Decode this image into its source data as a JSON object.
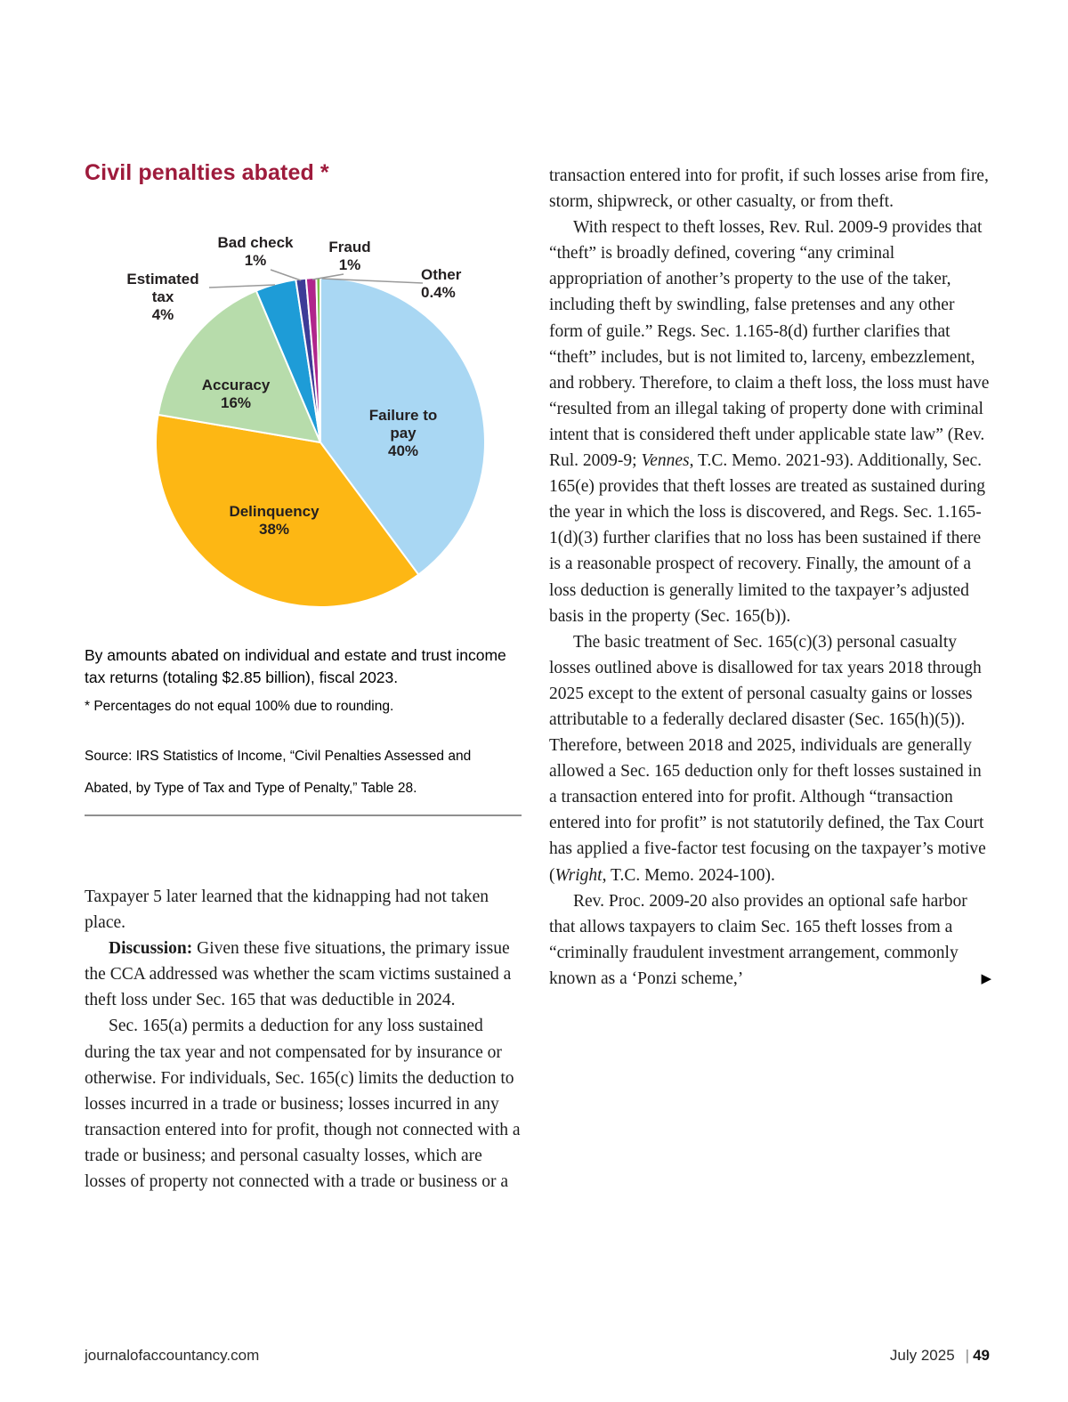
{
  "chart_panel": {
    "title": "Civil penalties abated *",
    "caption": "By amounts abated on individual and estate and trust income tax returns (totaling $2.85 billion), fiscal 2023.",
    "footnote": "* Percentages do not equal 100% due to rounding.",
    "source": "Source: IRS Statistics of Income, “Civil Penalties Assessed and Abated, by Type of Tax and Type of Penalty,” Table 28."
  },
  "chart_data": {
    "type": "pie",
    "title": "Civil penalties abated *",
    "unit": "percent of amounts abated on individual and estate and trust income tax returns (totaling $2.85 billion), fiscal 2023",
    "start_angle_deg": 0,
    "direction": "clockwise",
    "note": "* Percentages do not equal 100% due to rounding.",
    "slices": [
      {
        "label": "Failure to pay",
        "pct": 40,
        "pct_label": "40%",
        "color": "#a9d7f3"
      },
      {
        "label": "Delinquency",
        "pct": 38,
        "pct_label": "38%",
        "color": "#fdb714"
      },
      {
        "label": "Accuracy",
        "pct": 16,
        "pct_label": "16%",
        "color": "#b7dcab"
      },
      {
        "label": "Estimated tax",
        "pct": 4,
        "pct_label": "4%",
        "color": "#1e9cd7"
      },
      {
        "label": "Bad check",
        "pct": 1,
        "pct_label": "1%",
        "color": "#3d3c97"
      },
      {
        "label": "Fraud",
        "pct": 1,
        "pct_label": "1%",
        "color": "#b0268c"
      },
      {
        "label": "Other",
        "pct": 0.4,
        "pct_label": "0.4%",
        "color": "#7dc24c"
      }
    ]
  },
  "article": {
    "left_column": {
      "p1": "Taxpayer 5 later learned that the kidnapping had not taken place.",
      "p2_lead": "Discussion:",
      "p2_rest": " Given these five situations, the primary issue the CCA addressed was whether the scam victims sustained a theft loss under Sec. 165 that was deductible in 2024.",
      "p3": "Sec. 165(a) permits a deduction for any loss sustained during the tax year and not compensated for by insurance or otherwise. For individuals, Sec. 165(c) limits the deduction to losses incurred in a trade or business; losses incurred in any transaction entered into for profit, though not connected with a trade or business; and personal casualty losses, which are losses of property not connected with a trade or business or a"
    },
    "right_column": {
      "p1": "transaction entered into for profit, if such losses arise from fire, storm, shipwreck, or other casualty, or from theft.",
      "p2_a": "With respect to theft losses, Rev. Rul. 2009-9 provides that “theft” is broadly defined, covering “any criminal appropriation of another’s property to the use of the taker, including theft by swindling, false pretenses and any other form of guile.” Regs. Sec. 1.165-8(d) further clarifies that “theft” includes, but is not limited to, larceny, embezzlement, and robbery. Therefore, to claim a theft loss, the loss must have “resulted from an illegal taking of property done with criminal intent that is considered theft under applicable state law” (Rev. Rul. 2009-9; ",
      "p2_italic": "Vennes",
      "p2_b": ", T.C. Memo. 2021-93). Additionally, Sec. 165(e) provides that theft losses are treated as sustained during the year in which the loss is discovered, and Regs. Sec. 1.165-1(d)(3) further clarifies that no loss has been sustained if there is a reasonable prospect of recovery. Finally, the amount of a loss deduction is generally limited to the taxpayer’s adjusted basis in the property (Sec. 165(b)).",
      "p3_a": "The basic treatment of Sec. 165(c)(3) personal casualty losses outlined above is disallowed for tax years 2018 through 2025 except to the extent of personal casualty gains or losses attributable to a federally declared disaster (Sec. 165(h)(5)). Therefore, between 2018 and 2025, individuals are generally allowed a Sec. 165 deduction only for theft losses sustained in a transaction entered into for profit. Although “transaction entered into for profit” is not statutorily defined, the Tax Court has applied a five-factor test focusing on the taxpayer’s motive (",
      "p3_italic": "Wright",
      "p3_b": ", T.C. Memo. 2024-100).",
      "p4": "Rev. Proc. 2009-20 also provides an optional safe harbor that allows taxpayers to claim Sec. 165 theft losses from a “criminally fraudulent investment arrangement, commonly known as a ‘Ponzi scheme,’",
      "continued_marker": "▶"
    }
  },
  "footer": {
    "site": "journalofaccountancy.com",
    "issue": "July 2025",
    "divider": "|",
    "page_number": "49"
  }
}
